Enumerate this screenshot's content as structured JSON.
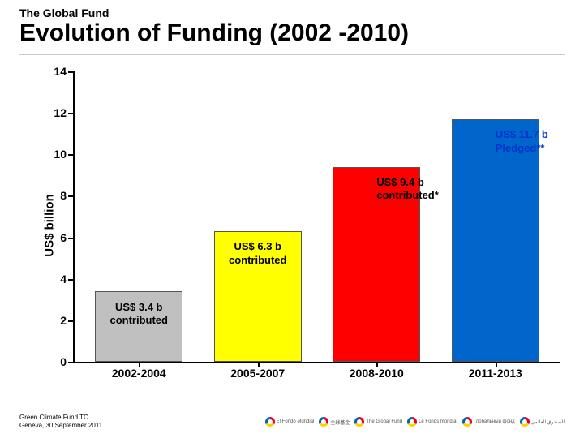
{
  "header": {
    "org": "The Global Fund",
    "title": "Evolution of Funding (2002 -2010)"
  },
  "chart": {
    "type": "bar",
    "y_axis": {
      "label": "US$ billion",
      "min": 0,
      "max": 14,
      "ticks": [
        0,
        2,
        4,
        6,
        8,
        10,
        12,
        14
      ],
      "label_fontsize": 15,
      "tick_fontsize": 14,
      "tick_fontweight": "bold",
      "color": "#000000"
    },
    "bars": [
      {
        "category": "2002-2004",
        "value": 3.4,
        "fill": "#c0c0c0",
        "border": "#555555",
        "label_lines": [
          "US$ 3.4 b",
          "contributed"
        ],
        "label_color": "#000000",
        "label_position": "below"
      },
      {
        "category": "2005-2007",
        "value": 6.3,
        "fill": "#ffff00",
        "border": "#555555",
        "label_lines": [
          "US$ 6.3 b",
          "contributed"
        ],
        "label_color": "#000000",
        "label_position": "below"
      },
      {
        "category": "2008-2010",
        "value": 9.4,
        "fill": "#ff0000",
        "border": "#555555",
        "label_lines": [
          "US$ 9.4 b",
          "contributed*"
        ],
        "label_color": "#000000",
        "label_position": "right"
      },
      {
        "category": "2011-2013",
        "value": 11.7,
        "fill": "#0066cc",
        "border": "#555555",
        "label_lines": [
          "US$ 11.7 b",
          "Pledged**"
        ],
        "label_color": "#0033cc",
        "label_position": "right"
      }
    ],
    "bar_width_pct": 18,
    "bar_gap_pct": 6.5,
    "category_fontsize": 14,
    "category_fontweight": "bold",
    "background_color": "#ffffff"
  },
  "footer": {
    "line1": "Green Climate Fund TC",
    "line2": "Geneva, 30 September 2011",
    "logos": [
      "El Fondo Mundial",
      "全球基金",
      "The Global Fund",
      "Le Fonds mondial",
      "Глобальный фонд",
      "الصندوق العالمي"
    ]
  }
}
